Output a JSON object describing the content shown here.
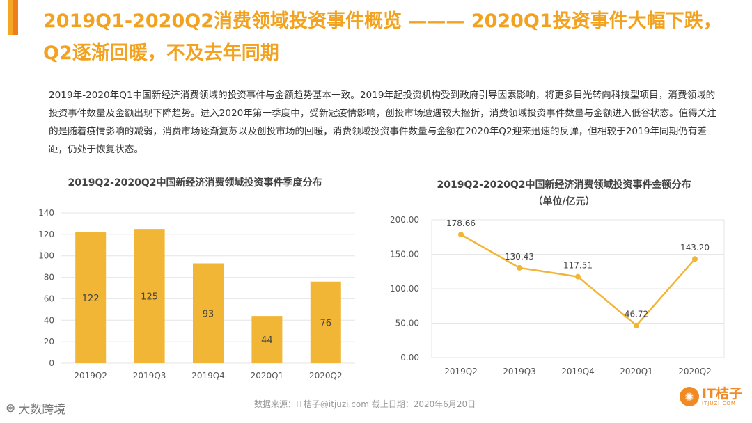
{
  "colors": {
    "accent": "#f5a623",
    "accent_dark": "#ef7d1b",
    "bar": "#f2b636",
    "line": "#f2b636",
    "title_text": "#f2a21e",
    "axis_text": "#555555",
    "grid": "#e6e6e6"
  },
  "header": {
    "title": "2019Q1-2020Q2消费领域投资事件概览 ——— 2020Q1投资事件大幅下跌，Q2逐渐回暖，不及去年同期"
  },
  "body_text": "2019年-2020年Q1中国新经济消费领域的投资事件与金额趋势基本一致。2019年起投资机构受到政府引导因素影响，将更多目光转向科技型项目，消费领域的投资事件数量及金额出现下降趋势。进入2020年第一季度中，受新冠疫情影响，创投市场遭遇较大挫折，消费领域投资事件数量与金额进入低谷状态。值得关注的是随着疫情影响的减弱，消费市场逐渐复苏以及创投市场的回暖，消费领域投资事件数量与金额在2020年Q2迎来迅速的反弹，但相较于2019年同期仍有差距，仍处于恢复状态。",
  "chart_data": [
    {
      "type": "bar",
      "title": "2019Q2-2020Q2中国新经济消费领域投资事件季度分布",
      "categories": [
        "2019Q2",
        "2019Q3",
        "2019Q4",
        "2020Q1",
        "2020Q2"
      ],
      "values": [
        122,
        125,
        93,
        44,
        76
      ],
      "value_labels": [
        "122",
        "125",
        "93",
        "44",
        "76"
      ],
      "ylim": [
        0,
        140
      ],
      "yticks": [
        0,
        20,
        40,
        60,
        80,
        100,
        120,
        140
      ],
      "ytick_labels": [
        "0",
        "20",
        "40",
        "60",
        "80",
        "100",
        "120",
        "140"
      ],
      "xlabel": "",
      "ylabel": ""
    },
    {
      "type": "line",
      "title": "2019Q2-2020Q2中国新经济消费领域投资事件金额分布",
      "subtitle": "（单位/亿元）",
      "categories": [
        "2019Q2",
        "2019Q3",
        "2019Q4",
        "2020Q1",
        "2020Q2"
      ],
      "values": [
        178.66,
        130.43,
        117.51,
        46.72,
        143.2
      ],
      "value_labels": [
        "178.66",
        "130.43",
        "117.51",
        "46.72",
        "143.20"
      ],
      "ylim": [
        0,
        200
      ],
      "yticks": [
        0,
        50,
        100,
        150,
        200
      ],
      "ytick_labels": [
        "0.00",
        "50.00",
        "100.00",
        "150.00",
        "200.00"
      ],
      "xlabel": "",
      "ylabel": ""
    }
  ],
  "footer": {
    "source": "数据来源：IT桔子@itjuzi.com   截止日期：2020年6月20日",
    "watermark_left": "大数跨境",
    "logo_text": "IT桔子",
    "logo_sub": "ITJUZI.COM"
  }
}
